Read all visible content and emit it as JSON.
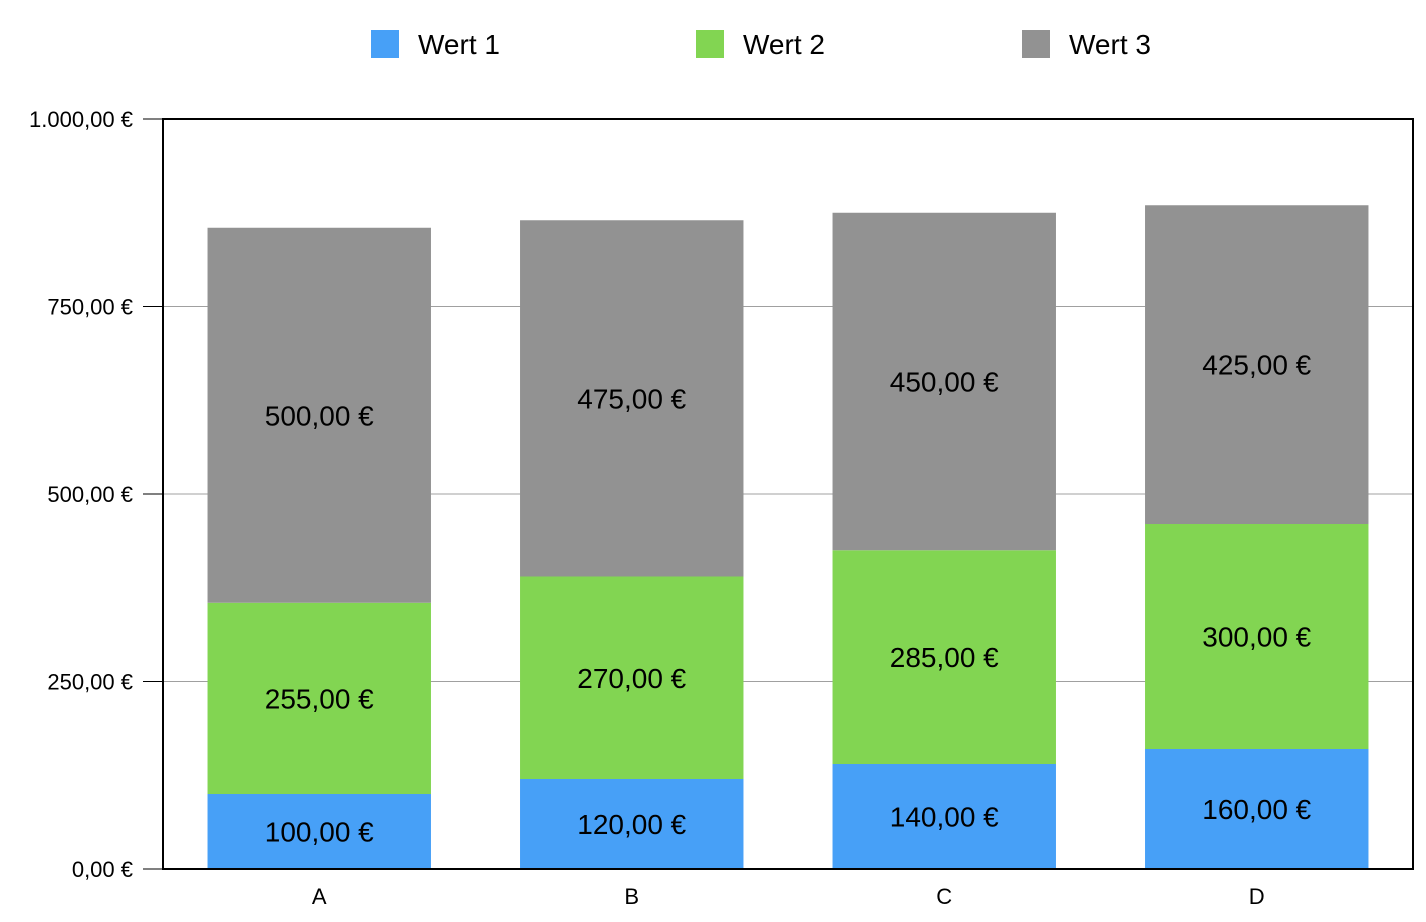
{
  "chart_data": {
    "type": "bar",
    "stacked": true,
    "categories": [
      "A",
      "B",
      "C",
      "D"
    ],
    "series": [
      {
        "name": "Wert 1",
        "color": "#47a0f7",
        "values": [
          100,
          120,
          140,
          160
        ],
        "labels": [
          "100,00 €",
          "120,00 €",
          "140,00 €",
          "160,00 €"
        ]
      },
      {
        "name": "Wert 2",
        "color": "#82d552",
        "values": [
          255,
          270,
          285,
          300
        ],
        "labels": [
          "255,00 €",
          "270,00 €",
          "285,00 €",
          "300,00 €"
        ]
      },
      {
        "name": "Wert 3",
        "color": "#929292",
        "values": [
          500,
          475,
          450,
          425
        ],
        "labels": [
          "500,00 €",
          "475,00 €",
          "450,00 €",
          "425,00 €"
        ]
      }
    ],
    "ylim": [
      0,
      1000
    ],
    "yticks": [
      0,
      250,
      500,
      750,
      1000
    ],
    "ytick_labels": [
      "0,00 €",
      "250,00 €",
      "500,00 €",
      "750,00 €",
      "1.000,00 €"
    ],
    "grid": true,
    "legend_position": "top-center",
    "title": "",
    "xlabel": "",
    "ylabel": ""
  }
}
